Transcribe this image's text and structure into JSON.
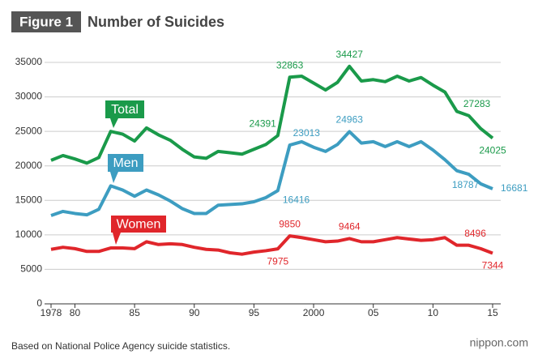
{
  "figure_label": "Figure 1",
  "chart_data": {
    "type": "line",
    "title": "Number of Suicides",
    "x": [
      1978,
      1979,
      1980,
      1981,
      1982,
      1983,
      1984,
      1985,
      1986,
      1987,
      1988,
      1989,
      1990,
      1991,
      1992,
      1993,
      1994,
      1995,
      1996,
      1997,
      1998,
      1999,
      2000,
      2001,
      2002,
      2003,
      2004,
      2005,
      2006,
      2007,
      2008,
      2009,
      2010,
      2011,
      2012,
      2013,
      2014,
      2015
    ],
    "xlim": [
      1978,
      2015
    ],
    "xticks": [
      1978,
      {
        "value": 1980,
        "label": "80"
      },
      {
        "value": 1985,
        "label": "85"
      },
      {
        "value": 1990,
        "label": "90"
      },
      {
        "value": 1995,
        "label": "95"
      },
      2000,
      {
        "value": 2005,
        "label": "05"
      },
      {
        "value": 2010,
        "label": "10"
      },
      {
        "value": 2015,
        "label": "15"
      }
    ],
    "ylim": [
      0,
      35000
    ],
    "yticks": [
      0,
      5000,
      10000,
      15000,
      20000,
      25000,
      30000,
      35000
    ],
    "grid": true,
    "series": [
      {
        "name": "Total",
        "color": "#1a9a4a",
        "labeled_points": [
          19,
          20,
          25,
          35,
          37
        ],
        "values": [
          20800,
          21500,
          21000,
          20400,
          21200,
          25000,
          24600,
          23600,
          25500,
          24500,
          23700,
          22400,
          21300,
          21100,
          22100,
          21900,
          21700,
          22400,
          23100,
          24391,
          32863,
          33000,
          32000,
          31000,
          32100,
          34427,
          32300,
          32500,
          32200,
          33000,
          32300,
          32800,
          31700,
          30700,
          27900,
          27283,
          25400,
          24025
        ]
      },
      {
        "name": "Men",
        "color": "#3d9dc1",
        "labeled_points": [
          19,
          20,
          25,
          35,
          37
        ],
        "values": [
          12800,
          13400,
          13100,
          12900,
          13700,
          17100,
          16500,
          15600,
          16500,
          15800,
          14900,
          13800,
          13100,
          13100,
          14300,
          14400,
          14500,
          14800,
          15400,
          16416,
          23013,
          23500,
          22700,
          22100,
          23100,
          24963,
          23300,
          23500,
          22800,
          23500,
          22800,
          23500,
          22300,
          20900,
          19300,
          18787,
          17400,
          16681
        ]
      },
      {
        "name": "Women",
        "color": "#e0262b",
        "labeled_points": [
          19,
          20,
          25,
          35,
          37
        ],
        "values": [
          7900,
          8200,
          8000,
          7600,
          7600,
          8100,
          8100,
          8000,
          9000,
          8600,
          8700,
          8600,
          8200,
          7900,
          7800,
          7400,
          7200,
          7500,
          7700,
          7975,
          9850,
          9600,
          9300,
          9000,
          9100,
          9464,
          9000,
          9000,
          9300,
          9600,
          9400,
          9200,
          9300,
          9600,
          8500,
          8496,
          8000,
          7344
        ]
      }
    ]
  },
  "source": "Based on National Police Agency suicide statistics.",
  "credit": "nippon.com"
}
